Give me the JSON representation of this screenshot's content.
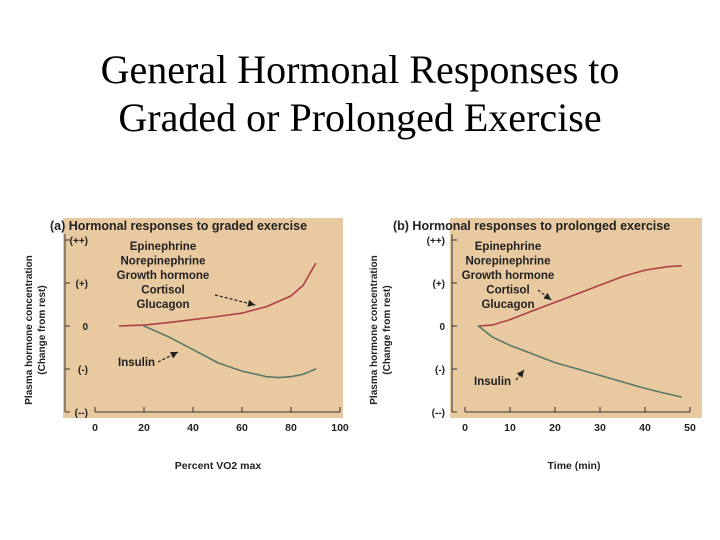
{
  "slide": {
    "title_line1": "General Hormonal Responses to",
    "title_line2": "Graded or Prolonged Exercise"
  },
  "colors": {
    "panel_bg": "#e8c9a0",
    "rise_curve": "#b04048",
    "fall_curve": "#5a7a68",
    "text": "#222222"
  },
  "chart_data": [
    {
      "type": "line",
      "panel_label": "(a)",
      "title": "Hormonal responses to graded exercise",
      "xlabel": "Percent VO2 max",
      "ylabel": "Plasma hormone concentration",
      "ylabel2": "(Change from rest)",
      "xlim": [
        0,
        100
      ],
      "x_ticks": [
        "0",
        "20",
        "40",
        "60",
        "80",
        "100"
      ],
      "y_levels": [
        -2,
        -1,
        0,
        1,
        2
      ],
      "y_tick_labels": [
        "(--)",
        "(-)",
        "0",
        "(+)",
        "(++)"
      ],
      "ylim": [
        -2,
        2
      ],
      "series": [
        {
          "name": "Epinephrine\nNorepinephrine\nGrowth hormone\nCortisol\nGlucagon",
          "color_key": "rise_curve",
          "x": [
            10,
            20,
            30,
            40,
            50,
            60,
            70,
            80,
            85,
            90
          ],
          "y": [
            0.0,
            0.02,
            0.08,
            0.15,
            0.22,
            0.3,
            0.45,
            0.7,
            0.95,
            1.45
          ]
        },
        {
          "name": "Insulin",
          "color_key": "fall_curve",
          "x": [
            20,
            30,
            40,
            50,
            60,
            70,
            75,
            80,
            85,
            90
          ],
          "y": [
            0.0,
            -0.25,
            -0.55,
            -0.85,
            -1.05,
            -1.18,
            -1.2,
            -1.18,
            -1.12,
            -1.0
          ]
        }
      ]
    },
    {
      "type": "line",
      "panel_label": "(b)",
      "title": "Hormonal responses to prolonged exercise",
      "xlabel": "Time (min)",
      "ylabel": "Plasma hormone concentration",
      "ylabel2": "(Change from rest)",
      "xlim": [
        0,
        50
      ],
      "x_ticks": [
        "0",
        "10",
        "20",
        "30",
        "40",
        "50"
      ],
      "y_levels": [
        -2,
        -1,
        0,
        1,
        2
      ],
      "y_tick_labels": [
        "(--)",
        "(-)",
        "0",
        "(+)",
        "(++)"
      ],
      "ylim": [
        -2,
        2
      ],
      "series": [
        {
          "name": "Epinephrine\nNorepinephrine\nGrowth hormone\nCortisol\nGlucagon",
          "color_key": "rise_curve",
          "x": [
            3,
            6,
            10,
            15,
            20,
            25,
            30,
            35,
            40,
            45,
            48
          ],
          "y": [
            0.0,
            0.02,
            0.15,
            0.35,
            0.55,
            0.75,
            0.95,
            1.15,
            1.3,
            1.38,
            1.4
          ]
        },
        {
          "name": "Insulin",
          "color_key": "fall_curve",
          "x": [
            3,
            6,
            10,
            15,
            20,
            25,
            30,
            35,
            40,
            45,
            48
          ],
          "y": [
            0.0,
            -0.25,
            -0.45,
            -0.65,
            -0.85,
            -1.0,
            -1.15,
            -1.3,
            -1.45,
            -1.58,
            -1.65
          ]
        }
      ]
    }
  ]
}
